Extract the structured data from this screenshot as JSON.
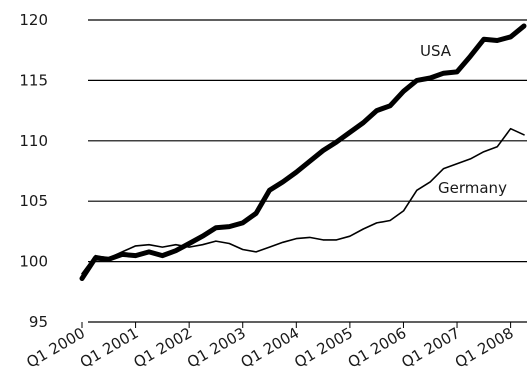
{
  "chart_data": {
    "type": "line",
    "title": "",
    "xlabel": "",
    "ylabel": "",
    "ylim": [
      95,
      120
    ],
    "yticks": [
      95,
      100,
      105,
      110,
      115,
      120
    ],
    "xticks": [
      {
        "x": 2000.0,
        "label": "Q1 2000"
      },
      {
        "x": 2001.0,
        "label": "Q1 2001"
      },
      {
        "x": 2002.0,
        "label": "Q1 2002"
      },
      {
        "x": 2003.0,
        "label": "Q1 2003"
      },
      {
        "x": 2004.0,
        "label": "Q1 2004"
      },
      {
        "x": 2005.0,
        "label": "Q1 2005"
      },
      {
        "x": 2006.0,
        "label": "Q1 2006"
      },
      {
        "x": 2007.0,
        "label": "Q1 2007"
      },
      {
        "x": 2008.0,
        "label": "Q1 2008"
      }
    ],
    "grid": "horizontal",
    "x": [
      2000.0,
      2000.25,
      2000.5,
      2000.75,
      2001.0,
      2001.25,
      2001.5,
      2001.75,
      2002.0,
      2002.25,
      2002.5,
      2002.75,
      2003.0,
      2003.25,
      2003.5,
      2003.75,
      2004.0,
      2004.25,
      2004.5,
      2004.75,
      2005.0,
      2005.25,
      2005.5,
      2005.75,
      2006.0,
      2006.25,
      2006.5,
      2006.75,
      2007.0,
      2007.25,
      2007.5,
      2007.75,
      2008.0,
      2008.25
    ],
    "series": [
      {
        "name": "USA",
        "color": "#000000",
        "width": "thick",
        "values": [
          98.6,
          100.3,
          100.2,
          100.6,
          100.5,
          100.8,
          100.5,
          100.9,
          101.5,
          102.1,
          102.8,
          102.9,
          103.2,
          104.0,
          105.9,
          106.6,
          107.4,
          108.3,
          109.2,
          109.9,
          110.7,
          111.5,
          112.5,
          112.9,
          114.1,
          115.0,
          115.2,
          115.6,
          115.7,
          117.0,
          118.4,
          118.3,
          118.6,
          119.5
        ]
      },
      {
        "name": "Germany",
        "color": "#000000",
        "width": "thin",
        "values": [
          99.0,
          100.5,
          100.3,
          100.8,
          101.3,
          101.4,
          101.2,
          101.4,
          101.2,
          101.4,
          101.7,
          101.5,
          101.0,
          100.8,
          101.2,
          101.6,
          101.9,
          102.0,
          101.8,
          101.8,
          102.1,
          102.7,
          103.2,
          103.4,
          104.2,
          105.9,
          106.6,
          107.7,
          108.1,
          108.5,
          109.1,
          109.5,
          111.0,
          110.5
        ]
      }
    ]
  }
}
